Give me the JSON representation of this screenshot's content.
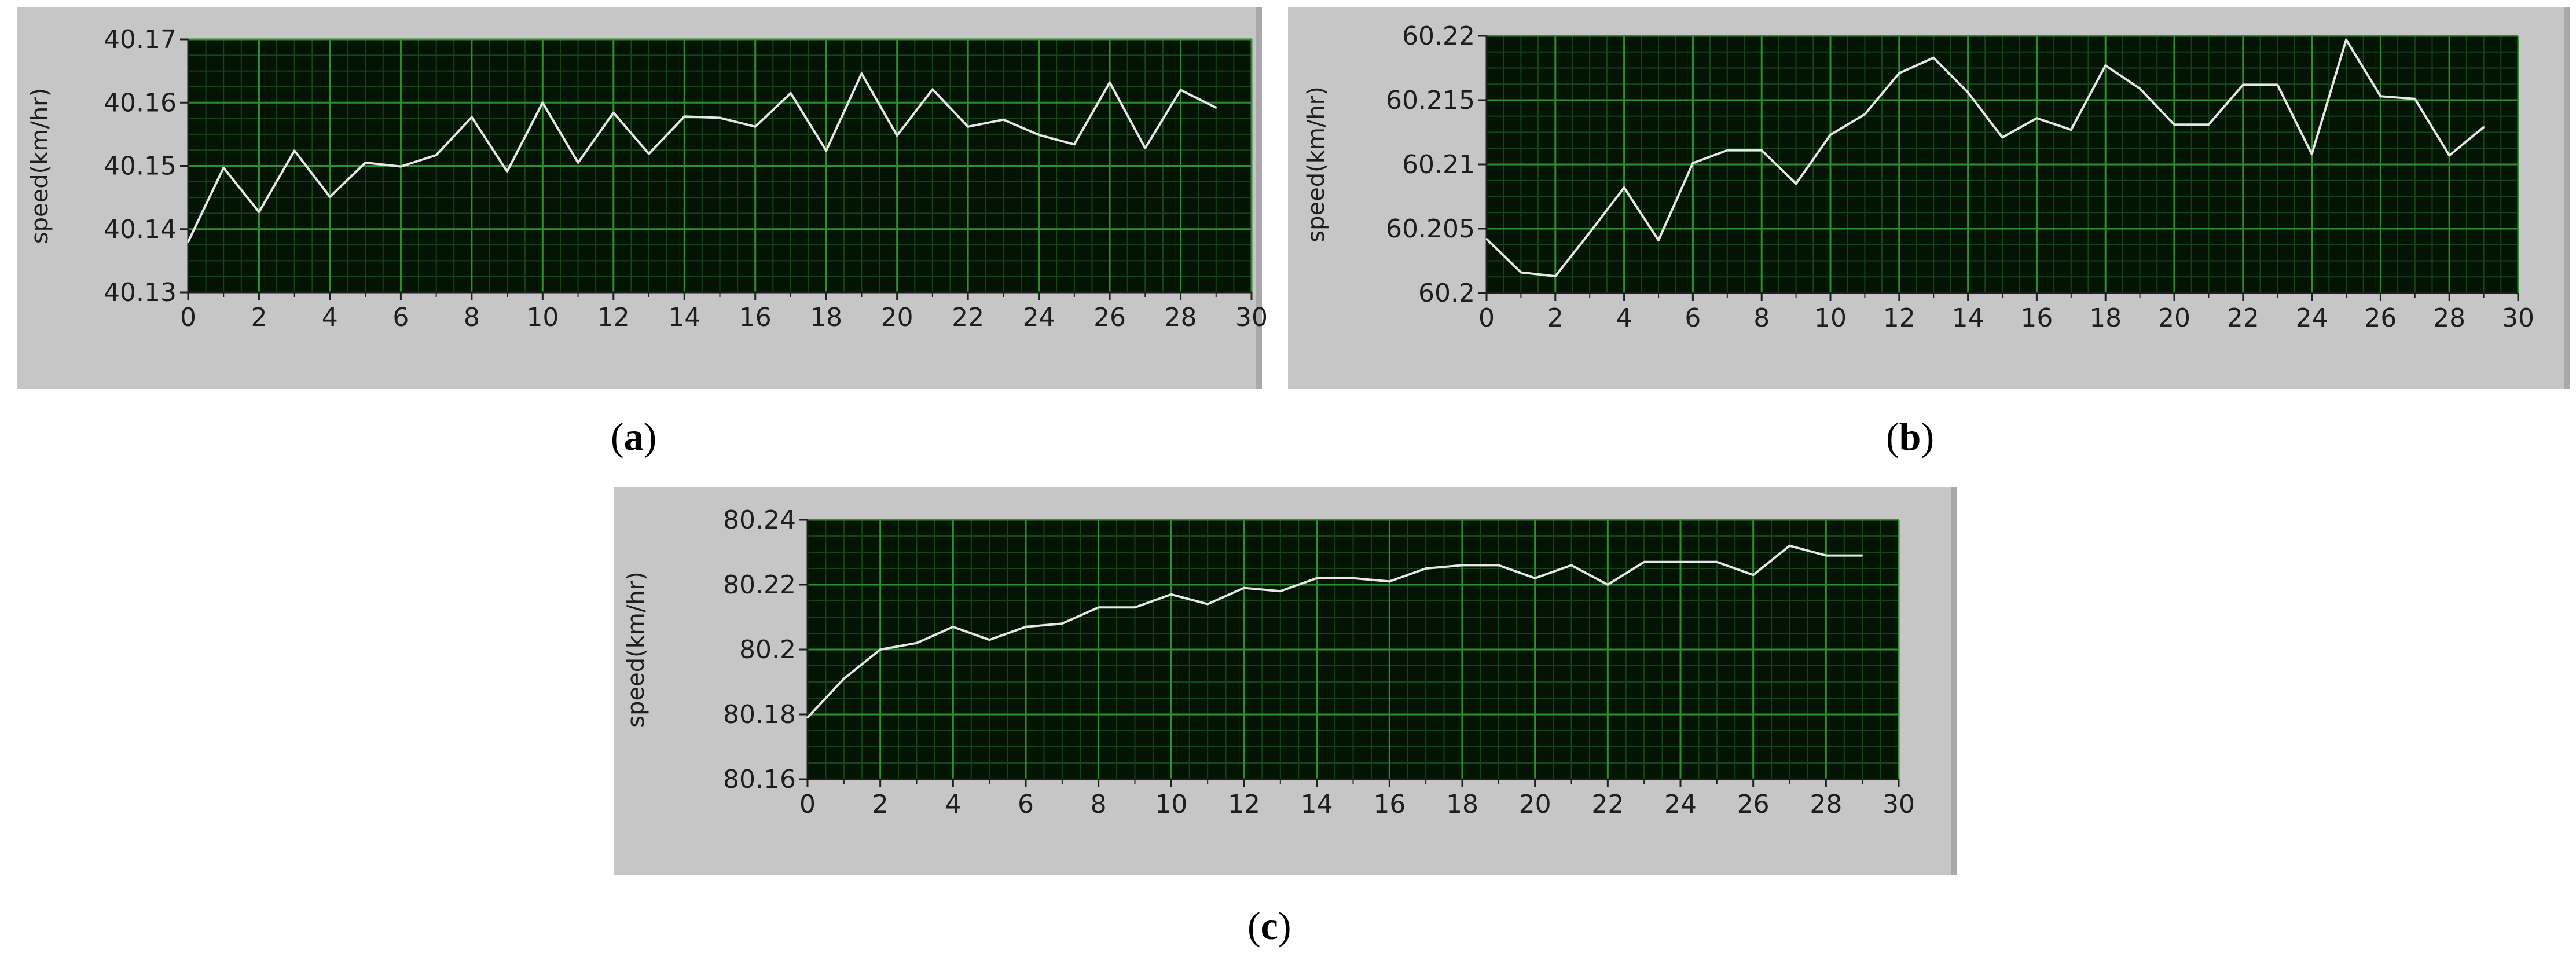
{
  "captions": {
    "a": "a",
    "b": "b",
    "c": "c"
  },
  "colors": {
    "plot_bg": "#041404",
    "grid_major": "#2f8f2f",
    "grid_minor": "#15461a",
    "trace": "#e6e6e6",
    "panel": "#c6c6c6"
  },
  "chart_data": [
    {
      "type": "line",
      "ylabel": "speed(km/hr)",
      "xlabel": "",
      "xlim": [
        0,
        30
      ],
      "ylim": [
        40.13,
        40.17
      ],
      "xticks": [
        "0",
        "2",
        "4",
        "6",
        "8",
        "10",
        "12",
        "14",
        "16",
        "18",
        "20",
        "22",
        "24",
        "26",
        "28",
        "30"
      ],
      "yticks": [
        "40.13",
        "40.14",
        "40.15",
        "40.16",
        "40.17"
      ],
      "ytick_values": [
        40.13,
        40.14,
        40.15,
        40.16,
        40.17
      ],
      "grid": true,
      "x": [
        0,
        1,
        2,
        3,
        4,
        5,
        6,
        7,
        8,
        9,
        10,
        11,
        12,
        13,
        14,
        15,
        16,
        17,
        18,
        19,
        20,
        21,
        22,
        23,
        24,
        25,
        26,
        27,
        28,
        29
      ],
      "y": [
        40.138,
        40.1497,
        40.1427,
        40.1524,
        40.1451,
        40.1505,
        40.1499,
        40.1517,
        40.1577,
        40.1491,
        40.16,
        40.1505,
        40.1584,
        40.1519,
        40.1578,
        40.1576,
        40.1562,
        40.1615,
        40.1524,
        40.1646,
        40.1548,
        40.1621,
        40.1562,
        40.1573,
        40.1549,
        40.1534,
        40.1632,
        40.1528,
        40.162,
        40.1592
      ]
    },
    {
      "type": "line",
      "ylabel": "speed(km/hr)",
      "xlabel": "",
      "xlim": [
        0,
        30
      ],
      "ylim": [
        60.2,
        60.22
      ],
      "xticks": [
        "0",
        "2",
        "4",
        "6",
        "8",
        "10",
        "12",
        "14",
        "16",
        "18",
        "20",
        "22",
        "24",
        "26",
        "28",
        "30"
      ],
      "yticks": [
        "60.2",
        "60.205",
        "60.21",
        "60.215",
        "60.22"
      ],
      "ytick_values": [
        60.2,
        60.205,
        60.21,
        60.215,
        60.22
      ],
      "grid": true,
      "x": [
        0,
        1,
        2,
        3,
        4,
        5,
        6,
        7,
        8,
        9,
        10,
        11,
        12,
        13,
        14,
        15,
        16,
        17,
        18,
        19,
        20,
        21,
        22,
        23,
        24,
        25,
        26,
        27,
        28,
        29
      ],
      "y": [
        60.2042,
        60.2016,
        60.2013,
        60.2047,
        60.2082,
        60.2041,
        60.2101,
        60.2111,
        60.2111,
        60.2085,
        60.2123,
        60.2139,
        60.2171,
        60.2183,
        60.2156,
        60.2121,
        60.2136,
        60.2127,
        60.2177,
        60.2159,
        60.2131,
        60.2131,
        60.2162,
        60.2162,
        60.2108,
        60.2197,
        60.2153,
        60.2151,
        60.2107,
        60.2129
      ]
    },
    {
      "type": "line",
      "ylabel": "speed(km/hr)",
      "xlabel": "",
      "xlim": [
        0,
        30
      ],
      "ylim": [
        80.16,
        80.24
      ],
      "xticks": [
        "0",
        "2",
        "4",
        "6",
        "8",
        "10",
        "12",
        "14",
        "16",
        "18",
        "20",
        "22",
        "24",
        "26",
        "28",
        "30"
      ],
      "yticks": [
        "80.16",
        "80.18",
        "80.2",
        "80.22",
        "80.24"
      ],
      "ytick_values": [
        80.16,
        80.18,
        80.2,
        80.22,
        80.24
      ],
      "grid": true,
      "x": [
        0,
        1,
        2,
        3,
        4,
        5,
        6,
        7,
        8,
        9,
        10,
        11,
        12,
        13,
        14,
        15,
        16,
        17,
        18,
        19,
        20,
        21,
        22,
        23,
        24,
        25,
        26,
        27,
        28,
        29
      ],
      "y": [
        80.179,
        80.191,
        80.2,
        80.202,
        80.207,
        80.203,
        80.207,
        80.208,
        80.213,
        80.213,
        80.217,
        80.214,
        80.219,
        80.218,
        80.222,
        80.222,
        80.221,
        80.225,
        80.226,
        80.226,
        80.222,
        80.226,
        80.22,
        80.227,
        80.227,
        80.227,
        80.223,
        80.232,
        80.229,
        80.229
      ]
    }
  ]
}
